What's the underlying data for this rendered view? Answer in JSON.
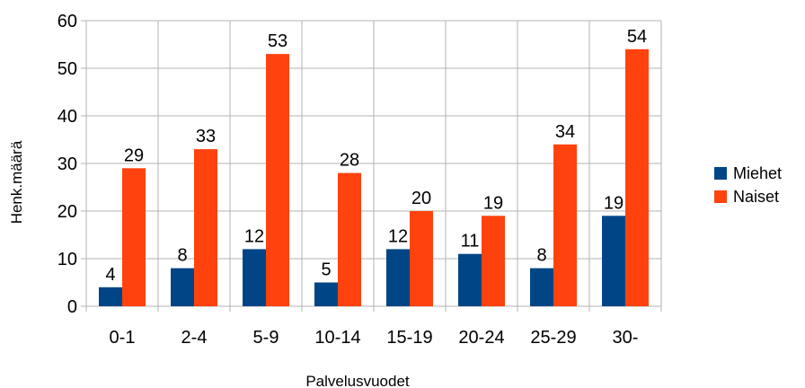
{
  "chart_data": {
    "type": "bar",
    "categories": [
      "0-1",
      "2-4",
      "5-9",
      "10-14",
      "15-19",
      "20-24",
      "25-29",
      "30-"
    ],
    "series": [
      {
        "name": "Miehet",
        "color": "#004586",
        "values": [
          4,
          8,
          12,
          5,
          12,
          11,
          8,
          19
        ]
      },
      {
        "name": "Naiset",
        "color": "#ff420e",
        "values": [
          29,
          33,
          53,
          28,
          20,
          19,
          34,
          54
        ]
      }
    ],
    "title": "",
    "xlabel": "Palvelusvuodet",
    "ylabel": "Henk.määrä",
    "ylim": [
      0,
      60
    ],
    "yticks": [
      0,
      10,
      20,
      30,
      40,
      50,
      60
    ],
    "grid": true,
    "legend": "right",
    "data_labels": true
  }
}
